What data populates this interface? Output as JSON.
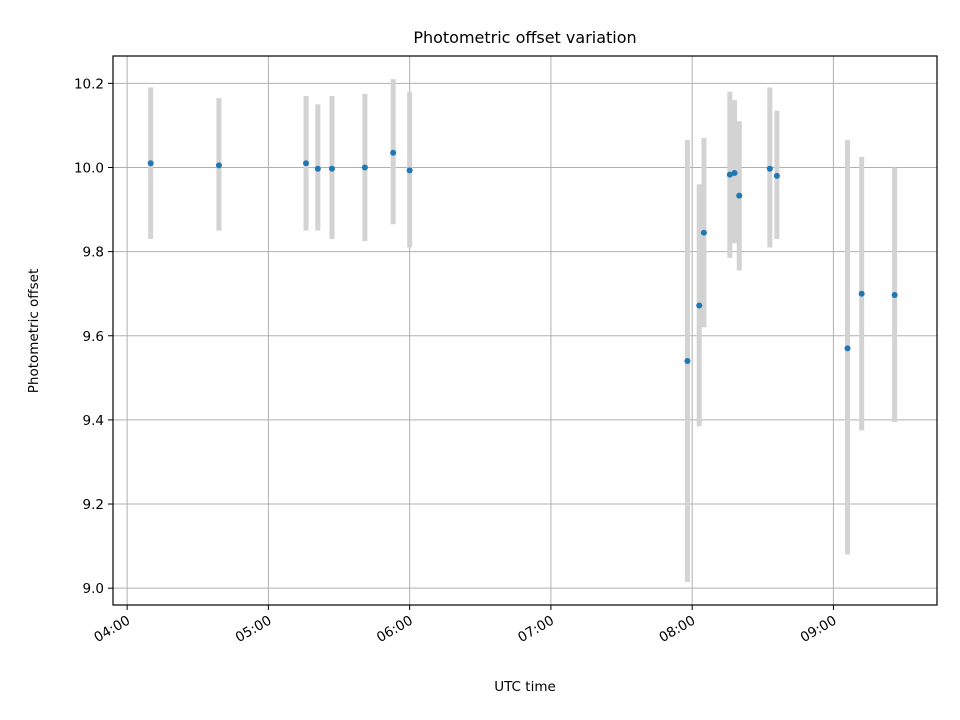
{
  "chart_data": {
    "type": "scatter",
    "title": "Photometric offset variation",
    "xlabel": "UTC time",
    "ylabel": "Photometric offset",
    "grid": true,
    "x_axis": {
      "kind": "time",
      "unit": "hours UTC",
      "range": [
        "03:54",
        "09:44"
      ],
      "ticks": [
        "04:00",
        "05:00",
        "06:00",
        "07:00",
        "08:00",
        "09:00"
      ]
    },
    "y_axis": {
      "range": [
        8.96,
        10.265
      ],
      "ticks": [
        "9.0",
        "9.2",
        "9.4",
        "9.6",
        "9.8",
        "10.0",
        "10.2"
      ]
    },
    "colors": {
      "point": "#1f77b4",
      "errorbar": "#d3d3d3",
      "grid": "#b0b0b0"
    },
    "series": [
      {
        "points": [
          {
            "x": "04:10",
            "y": 10.01,
            "low": 9.83,
            "high": 10.19
          },
          {
            "x": "04:39",
            "y": 10.005,
            "low": 9.85,
            "high": 10.165
          },
          {
            "x": "05:16",
            "y": 10.01,
            "low": 9.85,
            "high": 10.17
          },
          {
            "x": "05:21",
            "y": 9.997,
            "low": 9.85,
            "high": 10.15
          },
          {
            "x": "05:27",
            "y": 9.997,
            "low": 9.83,
            "high": 10.17
          },
          {
            "x": "05:41",
            "y": 10.0,
            "low": 9.825,
            "high": 10.175
          },
          {
            "x": "05:53",
            "y": 10.035,
            "low": 9.865,
            "high": 10.21
          },
          {
            "x": "06:00",
            "y": 9.993,
            "low": 9.81,
            "high": 10.18
          },
          {
            "x": "07:58",
            "y": 9.54,
            "low": 9.015,
            "high": 10.065
          },
          {
            "x": "08:03",
            "y": 9.672,
            "low": 9.385,
            "high": 9.96
          },
          {
            "x": "08:05",
            "y": 9.845,
            "low": 9.62,
            "high": 10.07
          },
          {
            "x": "08:16",
            "y": 9.983,
            "low": 9.785,
            "high": 10.18
          },
          {
            "x": "08:18",
            "y": 9.987,
            "low": 9.82,
            "high": 10.16
          },
          {
            "x": "08:20",
            "y": 9.933,
            "low": 9.755,
            "high": 10.11
          },
          {
            "x": "08:33",
            "y": 9.997,
            "low": 9.81,
            "high": 10.19
          },
          {
            "x": "08:36",
            "y": 9.98,
            "low": 9.83,
            "high": 10.135
          },
          {
            "x": "09:06",
            "y": 9.57,
            "low": 9.08,
            "high": 10.065
          },
          {
            "x": "09:12",
            "y": 9.7,
            "low": 9.375,
            "high": 10.025
          },
          {
            "x": "09:26",
            "y": 9.697,
            "low": 9.395,
            "high": 10.0
          }
        ]
      }
    ]
  }
}
